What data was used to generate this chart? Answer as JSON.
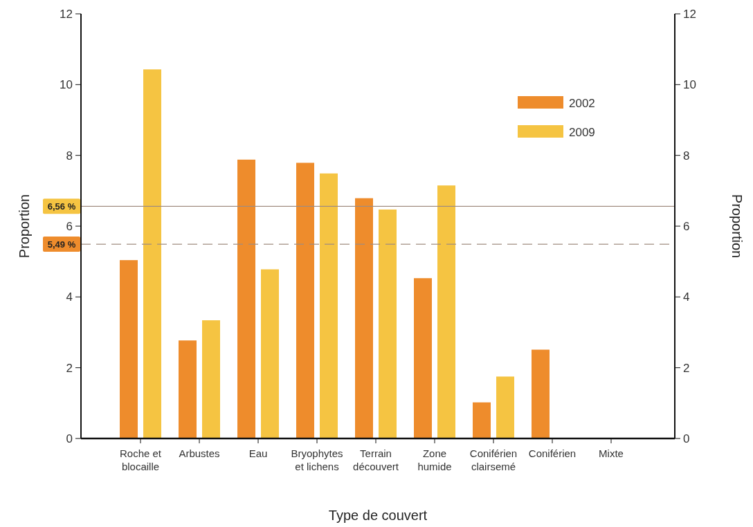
{
  "chart_data": {
    "type": "bar",
    "xlabel": "Type de couvert",
    "ylabel": "Proportion",
    "y2label": "Proportion",
    "categories": [
      "Roche et\nblocaille",
      "Arbustes",
      "Eau",
      "Bryophytes\net lichens",
      "Terrain\ndécouvert",
      "Zone\nhumide",
      "Coniférien\nclairsemé",
      "Coniférien",
      "Mixte"
    ],
    "series": [
      {
        "name": "2002",
        "color": "#ee8c2c",
        "values": [
          5.04,
          2.77,
          7.88,
          7.79,
          6.79,
          4.53,
          1.02,
          2.51,
          0
        ]
      },
      {
        "name": "2009",
        "color": "#f5c442",
        "values": [
          10.43,
          3.34,
          4.78,
          7.49,
          6.47,
          7.15,
          1.75,
          0,
          0
        ]
      }
    ],
    "ylim": [
      0,
      12
    ],
    "yticks": [
      0,
      2,
      4,
      6,
      8,
      10,
      12
    ],
    "y2lim": [
      0,
      12
    ],
    "y2ticks": [
      0,
      2,
      4,
      6,
      8,
      10,
      12
    ],
    "ref_lines": [
      {
        "axis": "y",
        "value": 6.56,
        "label": "6,56 %",
        "color": "#a08c80",
        "line_style": "solid"
      },
      {
        "axis": "y",
        "value": 5.49,
        "label": "5,49 %",
        "color": "#a08c80",
        "line_style": "dashed"
      }
    ],
    "legend": "top right",
    "grid": false
  }
}
